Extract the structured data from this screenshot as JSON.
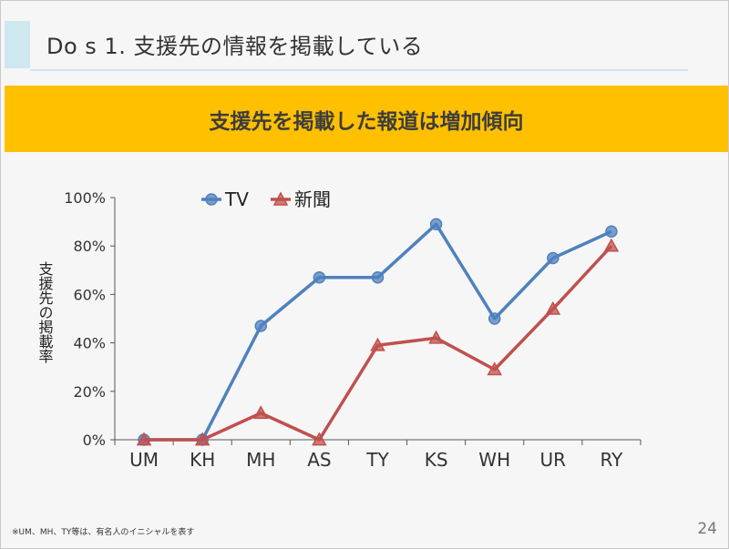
{
  "header": {
    "title": "Do s 1. 支援先の情報を掲載している"
  },
  "banner": {
    "text": "支援先を掲載した報道は増加傾向"
  },
  "footnote": "※UM、MH、TY等は、有名人のイニシャルを表す",
  "page_number": "24",
  "colors": {
    "tv": "#4f81bd",
    "newspaper": "#c0504d",
    "banner": "#ffc000",
    "header_accent": "#cfe7ef"
  },
  "chart_data": {
    "type": "line",
    "title": "",
    "xlabel": "",
    "ylabel": "支援先の掲載率",
    "categories": [
      "UM",
      "KH",
      "MH",
      "AS",
      "TY",
      "KS",
      "WH",
      "UR",
      "RY"
    ],
    "yticks": [
      "0%",
      "20%",
      "40%",
      "60%",
      "80%",
      "100%"
    ],
    "ylim": [
      0,
      100
    ],
    "grid": false,
    "legend": "top",
    "series": [
      {
        "name": "TV",
        "marker": "circle",
        "color": "#4f81bd",
        "values": [
          0,
          0,
          47,
          67,
          67,
          89,
          50,
          75,
          86
        ]
      },
      {
        "name": "新聞",
        "marker": "triangle",
        "color": "#c0504d",
        "values": [
          0,
          0,
          11,
          0,
          39,
          42,
          29,
          54,
          80
        ]
      }
    ]
  }
}
